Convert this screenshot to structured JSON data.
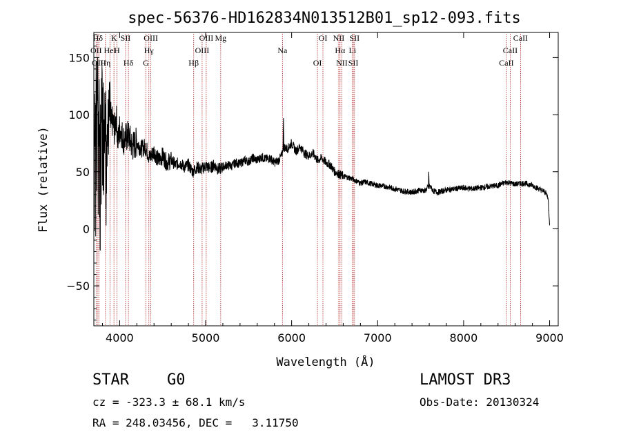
{
  "chart_data": {
    "type": "line",
    "title": "spec-56376-HD162834N013512B01_sp12-093.fits",
    "xlabel": "Wavelength (Å)",
    "ylabel": "Flux (relative)",
    "xlim": [
      3700,
      9100
    ],
    "ylim": [
      -85,
      172
    ],
    "x_ticks": [
      4000,
      5000,
      6000,
      7000,
      8000,
      9000
    ],
    "x_tick_labels": [
      "4000",
      "5000",
      "6000",
      "7000",
      "8000",
      "9000"
    ],
    "y_ticks": [
      -50,
      0,
      50,
      100,
      150
    ],
    "y_tick_labels": [
      "−50",
      "0",
      "50",
      "100",
      "150"
    ],
    "grid": false,
    "series": [
      {
        "name": "spectrum",
        "x": [
          3700,
          3720,
          3740,
          3760,
          3780,
          3800,
          3820,
          3840,
          3860,
          3880,
          3900,
          3920,
          3940,
          3960,
          3980,
          4000,
          4050,
          4100,
          4150,
          4200,
          4250,
          4300,
          4350,
          4400,
          4450,
          4500,
          4550,
          4600,
          4650,
          4700,
          4750,
          4800,
          4850,
          4900,
          4950,
          5000,
          5050,
          5100,
          5150,
          5200,
          5250,
          5300,
          5350,
          5400,
          5450,
          5500,
          5550,
          5600,
          5650,
          5700,
          5750,
          5800,
          5850,
          5890,
          5900,
          5950,
          6000,
          6050,
          6100,
          6150,
          6200,
          6250,
          6300,
          6350,
          6400,
          6450,
          6500,
          6550,
          6600,
          6650,
          6700,
          6750,
          6800,
          6850,
          6900,
          6950,
          7000,
          7100,
          7200,
          7300,
          7400,
          7500,
          7550,
          7600,
          7650,
          7700,
          7800,
          7900,
          8000,
          8100,
          8200,
          8300,
          8400,
          8500,
          8600,
          8700,
          8800,
          8900,
          8950,
          8980,
          9000
        ],
        "values": [
          85,
          110,
          125,
          100,
          90,
          115,
          95,
          105,
          80,
          100,
          90,
          95,
          85,
          100,
          75,
          88,
          78,
          82,
          72,
          76,
          70,
          72,
          62,
          68,
          60,
          64,
          58,
          60,
          56,
          58,
          54,
          56,
          50,
          54,
          52,
          55,
          53,
          56,
          52,
          54,
          56,
          55,
          58,
          57,
          60,
          59,
          62,
          60,
          63,
          61,
          62,
          58,
          60,
          65,
          72,
          70,
          75,
          68,
          72,
          66,
          64,
          66,
          60,
          62,
          58,
          56,
          50,
          48,
          46,
          45,
          44,
          42,
          40,
          41,
          40,
          39,
          38,
          37,
          35,
          33,
          32,
          34,
          33,
          38,
          33,
          32,
          34,
          35,
          36,
          35,
          36,
          37,
          38,
          41,
          39,
          40,
          38,
          34,
          32,
          28,
          5
        ]
      }
    ],
    "line_markers": [
      {
        "label": "Hδ",
        "wl": 3747
      },
      {
        "label": "OII",
        "wl": 3727
      },
      {
        "label": "OIII",
        "wl": 3760
      },
      {
        "label": "K",
        "wl": 3934
      },
      {
        "label": "HeI",
        "wl": 3889
      },
      {
        "label": "Hη",
        "wl": 3835
      },
      {
        "label": "SII",
        "wl": 4069
      },
      {
        "label": "H",
        "wl": 3968
      },
      {
        "label": "Hδ",
        "wl": 4102
      },
      {
        "label": "OIII",
        "wl": 4363
      },
      {
        "label": "Hγ",
        "wl": 4340
      },
      {
        "label": "G",
        "wl": 4305
      },
      {
        "label": "OIII",
        "wl": 5007
      },
      {
        "label": "OIII",
        "wl": 4959
      },
      {
        "label": "Hβ",
        "wl": 4861
      },
      {
        "label": "Mg",
        "wl": 5175
      },
      {
        "label": "Na",
        "wl": 5893
      },
      {
        "label": "OI",
        "wl": 6300
      },
      {
        "label": "OI",
        "wl": 6364
      },
      {
        "label": "Hα",
        "wl": 6563
      },
      {
        "label": "SII",
        "wl": 6717
      },
      {
        "label": "NII",
        "wl": 6548
      },
      {
        "label": "Li",
        "wl": 6708
      },
      {
        "label": "NII",
        "wl": 6584
      },
      {
        "label": "SII",
        "wl": 6731
      },
      {
        "label": "CaII",
        "wl": 8542
      },
      {
        "label": "CaII",
        "wl": 8498
      },
      {
        "label": "CaII",
        "wl": 8662
      }
    ]
  },
  "info": {
    "class_label": "STAR",
    "subclass_label": "G0",
    "survey_label": "LAMOST DR3",
    "cz_text": "cz = -323.3 ± 68.1 km/s",
    "obs_date_text": "Obs-Date: 20130324",
    "coords_text": "RA = 248.03456, DEC =   3.11750"
  }
}
